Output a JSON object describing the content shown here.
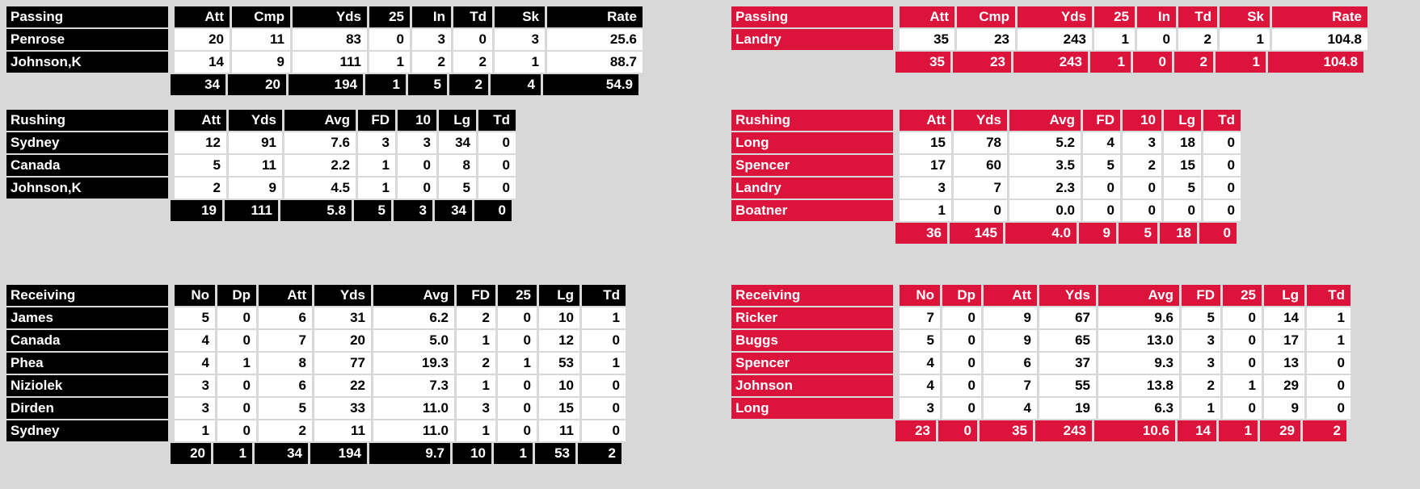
{
  "colors": {
    "page_bg": "#d8d8d8",
    "home_accent": "#000000",
    "visitor_accent": "#dc143c",
    "header_text": "#ffffff",
    "cell_bg": "#ffffff",
    "cell_text": "#000000"
  },
  "teams": {
    "home": {
      "passing": {
        "title": "Passing",
        "columns": [
          "Att",
          "Cmp",
          "Yds",
          "25",
          "In",
          "Td",
          "Sk",
          "Rate"
        ],
        "players": [
          {
            "name": "Penrose",
            "values": [
              "20",
              "11",
              "83",
              "0",
              "3",
              "0",
              "3",
              "25.6"
            ]
          },
          {
            "name": "Johnson,K",
            "values": [
              "14",
              "9",
              "111",
              "1",
              "2",
              "2",
              "1",
              "88.7"
            ]
          }
        ],
        "totals": [
          "34",
          "20",
          "194",
          "1",
          "5",
          "2",
          "4",
          "54.9"
        ]
      },
      "rushing": {
        "title": "Rushing",
        "columns": [
          "Att",
          "Yds",
          "Avg",
          "FD",
          "10",
          "Lg",
          "Td"
        ],
        "players": [
          {
            "name": "Sydney",
            "values": [
              "12",
              "91",
              "7.6",
              "3",
              "3",
              "34",
              "0"
            ]
          },
          {
            "name": "Canada",
            "values": [
              "5",
              "11",
              "2.2",
              "1",
              "0",
              "8",
              "0"
            ]
          },
          {
            "name": "Johnson,K",
            "values": [
              "2",
              "9",
              "4.5",
              "1",
              "0",
              "5",
              "0"
            ]
          }
        ],
        "totals": [
          "19",
          "111",
          "5.8",
          "5",
          "3",
          "34",
          "0"
        ]
      },
      "receiving": {
        "title": "Receiving",
        "columns": [
          "No",
          "Dp",
          "Att",
          "Yds",
          "Avg",
          "FD",
          "25",
          "Lg",
          "Td"
        ],
        "players": [
          {
            "name": "James",
            "values": [
              "5",
              "0",
              "6",
              "31",
              "6.2",
              "2",
              "0",
              "10",
              "1"
            ]
          },
          {
            "name": "Canada",
            "values": [
              "4",
              "0",
              "7",
              "20",
              "5.0",
              "1",
              "0",
              "12",
              "0"
            ]
          },
          {
            "name": "Phea",
            "values": [
              "4",
              "1",
              "8",
              "77",
              "19.3",
              "2",
              "1",
              "53",
              "1"
            ]
          },
          {
            "name": "Niziolek",
            "values": [
              "3",
              "0",
              "6",
              "22",
              "7.3",
              "1",
              "0",
              "10",
              "0"
            ]
          },
          {
            "name": "Dirden",
            "values": [
              "3",
              "0",
              "5",
              "33",
              "11.0",
              "3",
              "0",
              "15",
              "0"
            ]
          },
          {
            "name": "Sydney",
            "values": [
              "1",
              "0",
              "2",
              "11",
              "11.0",
              "1",
              "0",
              "11",
              "0"
            ]
          }
        ],
        "totals": [
          "20",
          "1",
          "34",
          "194",
          "9.7",
          "10",
          "1",
          "53",
          "2"
        ]
      }
    },
    "visitor": {
      "passing": {
        "title": "Passing",
        "columns": [
          "Att",
          "Cmp",
          "Yds",
          "25",
          "In",
          "Td",
          "Sk",
          "Rate"
        ],
        "players": [
          {
            "name": "Landry",
            "values": [
              "35",
              "23",
              "243",
              "1",
              "0",
              "2",
              "1",
              "104.8"
            ]
          }
        ],
        "totals": [
          "35",
          "23",
          "243",
          "1",
          "0",
          "2",
          "1",
          "104.8"
        ]
      },
      "rushing": {
        "title": "Rushing",
        "columns": [
          "Att",
          "Yds",
          "Avg",
          "FD",
          "10",
          "Lg",
          "Td"
        ],
        "players": [
          {
            "name": "Long",
            "values": [
              "15",
              "78",
              "5.2",
              "4",
              "3",
              "18",
              "0"
            ]
          },
          {
            "name": "Spencer",
            "values": [
              "17",
              "60",
              "3.5",
              "5",
              "2",
              "15",
              "0"
            ]
          },
          {
            "name": "Landry",
            "values": [
              "3",
              "7",
              "2.3",
              "0",
              "0",
              "5",
              "0"
            ]
          },
          {
            "name": "Boatner",
            "values": [
              "1",
              "0",
              "0.0",
              "0",
              "0",
              "0",
              "0"
            ]
          }
        ],
        "totals": [
          "36",
          "145",
          "4.0",
          "9",
          "5",
          "18",
          "0"
        ]
      },
      "receiving": {
        "title": "Receiving",
        "columns": [
          "No",
          "Dp",
          "Att",
          "Yds",
          "Avg",
          "FD",
          "25",
          "Lg",
          "Td"
        ],
        "players": [
          {
            "name": "Ricker",
            "values": [
              "7",
              "0",
              "9",
              "67",
              "9.6",
              "5",
              "0",
              "14",
              "1"
            ]
          },
          {
            "name": "Buggs",
            "values": [
              "5",
              "0",
              "9",
              "65",
              "13.0",
              "3",
              "0",
              "17",
              "1"
            ]
          },
          {
            "name": "Spencer",
            "values": [
              "4",
              "0",
              "6",
              "37",
              "9.3",
              "3",
              "0",
              "13",
              "0"
            ]
          },
          {
            "name": "Johnson",
            "values": [
              "4",
              "0",
              "7",
              "55",
              "13.8",
              "2",
              "1",
              "29",
              "0"
            ]
          },
          {
            "name": "Long",
            "values": [
              "3",
              "0",
              "4",
              "19",
              "6.3",
              "1",
              "0",
              "9",
              "0"
            ]
          }
        ],
        "totals": [
          "23",
          "0",
          "35",
          "243",
          "10.6",
          "14",
          "1",
          "29",
          "2"
        ]
      }
    }
  }
}
